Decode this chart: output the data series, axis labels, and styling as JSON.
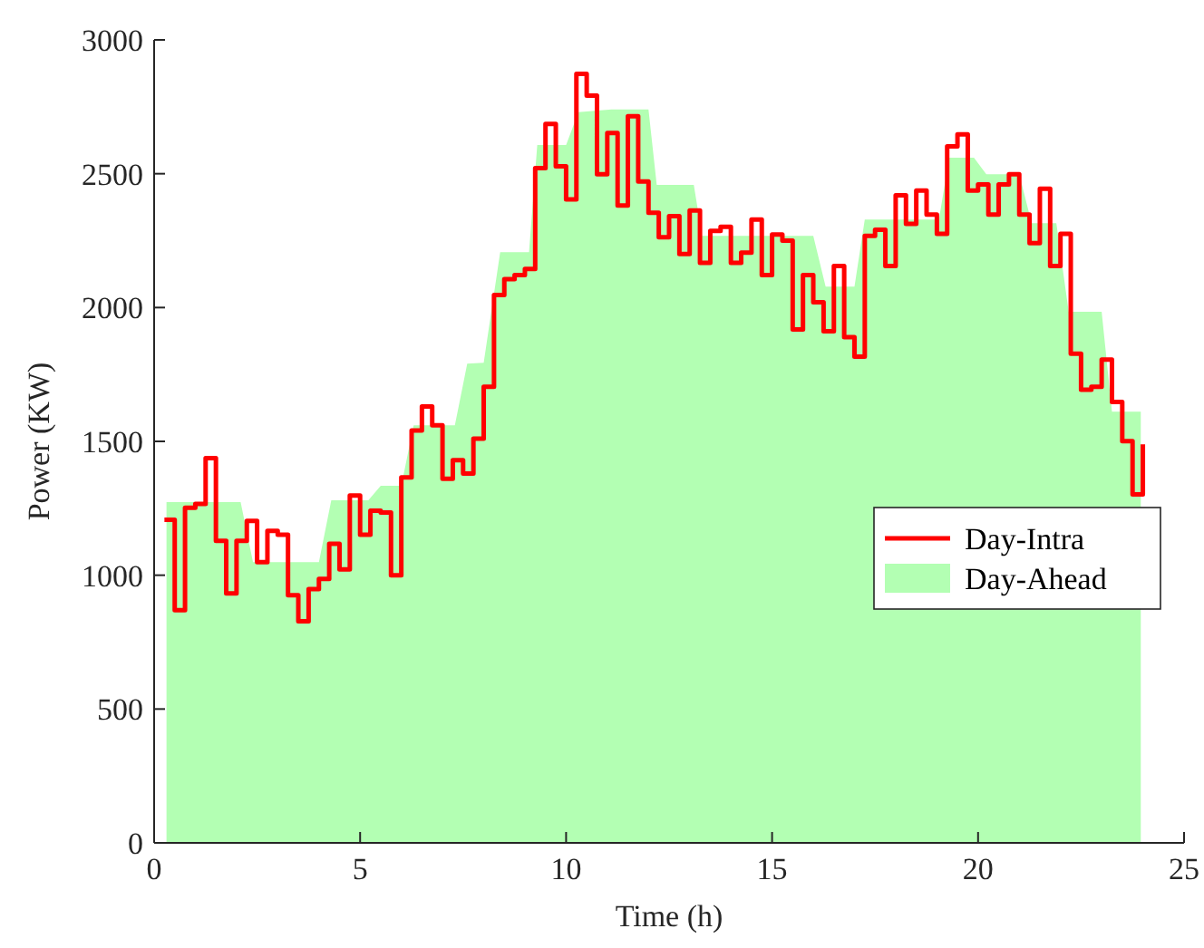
{
  "chart_data": {
    "type": "step",
    "xlabel": "Time (h)",
    "ylabel": "Power (KW)",
    "xlim": [
      0,
      25
    ],
    "xticks": [
      0,
      5,
      10,
      15,
      20,
      25
    ],
    "ylim": [
      0,
      3000
    ],
    "yticks": [
      0,
      500,
      1000,
      1500,
      2000,
      2500,
      3000
    ],
    "grid": false,
    "legend": "right",
    "series": [
      {
        "name": "Day-Intra",
        "color": "#ff0000",
        "x": [
          0.25,
          0.5,
          0.75,
          1,
          1.25,
          1.5,
          1.75,
          2,
          2.25,
          2.5,
          2.75,
          3,
          3.25,
          3.5,
          3.75,
          4,
          4.25,
          4.5,
          4.75,
          5,
          5.25,
          5.5,
          5.75,
          6,
          6.25,
          6.5,
          6.75,
          7,
          7.25,
          7.5,
          7.75,
          8,
          8.25,
          8.5,
          8.75,
          9,
          9.25,
          9.5,
          9.75,
          10,
          10.25,
          10.5,
          10.75,
          11,
          11.25,
          11.5,
          11.75,
          12,
          12.25,
          12.5,
          12.75,
          13,
          13.25,
          13.5,
          13.75,
          14,
          14.25,
          14.5,
          14.75,
          15,
          15.25,
          15.5,
          15.75,
          16,
          16.25,
          16.5,
          16.75,
          17,
          17.25,
          17.5,
          17.75,
          18,
          18.25,
          18.5,
          18.75,
          19,
          19.25,
          19.5,
          19.75,
          20,
          20.25,
          20.5,
          20.75,
          21,
          21.25,
          21.5,
          21.75,
          22,
          22.25,
          22.5,
          22.75,
          23,
          23.25,
          23.5,
          23.75,
          24
        ],
        "values": [
          1207,
          869,
          1252,
          1266,
          1437,
          1128,
          932,
          1128,
          1203,
          1049,
          1166,
          1151,
          925,
          828,
          948,
          986,
          1117,
          1022,
          1298,
          1151,
          1241,
          1234,
          1000,
          1365,
          1541,
          1630,
          1560,
          1360,
          1430,
          1380,
          1510,
          1704,
          2047,
          2106,
          2121,
          2144,
          2521,
          2686,
          2528,
          2404,
          2873,
          2792,
          2498,
          2652,
          2381,
          2715,
          2471,
          2354,
          2263,
          2341,
          2200,
          2363,
          2167,
          2286,
          2302,
          2167,
          2205,
          2329,
          2121,
          2273,
          2250,
          1918,
          2121,
          2020,
          1911,
          2155,
          1889,
          1817,
          2268,
          2291,
          2155,
          2419,
          2313,
          2437,
          2347,
          2275,
          2602,
          2647,
          2437,
          2460,
          2347,
          2460,
          2498,
          2347,
          2241,
          2444,
          2155,
          2275,
          1828,
          1693,
          1704,
          1806,
          1647,
          1501,
          1302,
          1489
        ]
      },
      {
        "name": "Day-Ahead",
        "type": "area",
        "color": "#b3ffb3",
        "x": [
          0.3,
          2.1,
          2.4,
          4.0,
          4.3,
          5.2,
          5.5,
          6.0,
          6.3,
          7.3,
          7.6,
          8.0,
          8.4,
          9.1,
          9.3,
          10.0,
          10.3,
          11.1,
          12.0,
          12.2,
          13.1,
          13.3,
          16.0,
          16.3,
          17.0,
          17.25,
          19.05,
          19.3,
          19.9,
          20.2,
          21.0,
          21.3,
          21.9,
          22.2,
          23.0,
          23.25,
          23.95
        ],
        "values": [
          1273,
          1273,
          1049,
          1049,
          1280,
          1280,
          1334,
          1334,
          1560,
          1560,
          1790,
          1794,
          2207,
          2207,
          2607,
          2607,
          2730,
          2740,
          2740,
          2458,
          2458,
          2268,
          2268,
          2078,
          2078,
          2329,
          2329,
          2560,
          2560,
          2498,
          2498,
          2315,
          2315,
          1984,
          1984,
          1611,
          1611
        ]
      }
    ]
  }
}
